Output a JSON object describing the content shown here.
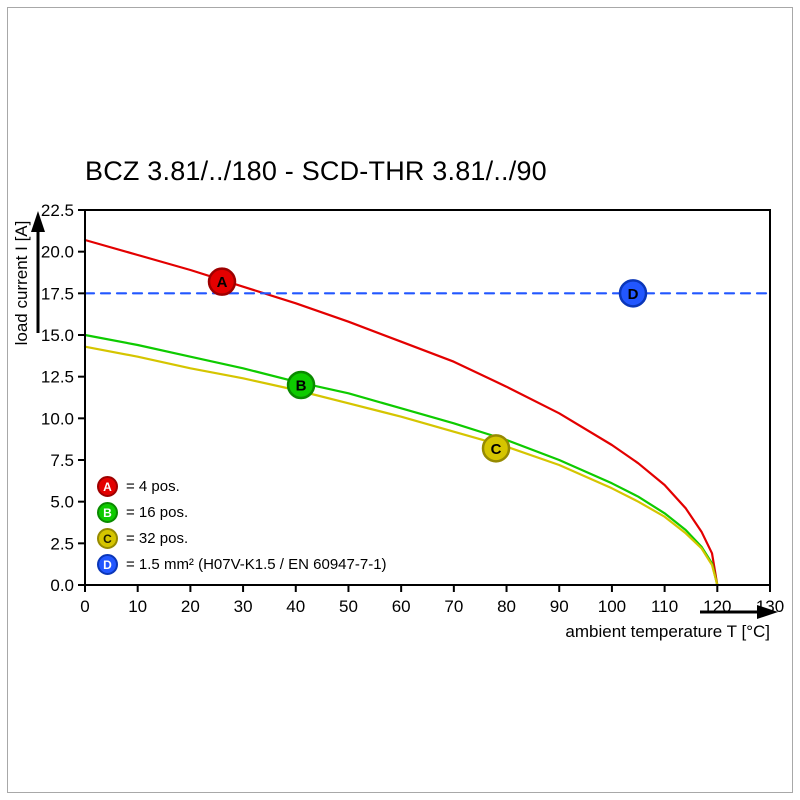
{
  "page": {
    "title": "BCZ 3.81/../180 - SCD-THR 3.81/../90"
  },
  "chart_data": {
    "type": "line",
    "title": "BCZ 3.81/../180 - SCD-THR 3.81/../90",
    "xlabel": "ambient temperature T [°C]",
    "ylabel": "load current I [A]",
    "xlim": [
      0,
      130
    ],
    "ylim": [
      0,
      22.5
    ],
    "xticks": [
      0,
      10,
      20,
      30,
      40,
      50,
      60,
      70,
      80,
      90,
      100,
      110,
      120,
      130
    ],
    "yticks": [
      "0.0",
      "2.5",
      "5.0",
      "7.5",
      "10.0",
      "12.5",
      "15.0",
      "17.5",
      "20.0",
      "22.5"
    ],
    "grid": false,
    "legend_position": "lower-left",
    "axis_color": "#000000",
    "series": [
      {
        "id": "A",
        "label": "= 4 pos.",
        "color": "#e30000",
        "ring_color": "#9e0000",
        "letter_color": "#ffffff",
        "style": "solid",
        "points": [
          [
            0,
            20.7
          ],
          [
            10,
            19.8
          ],
          [
            20,
            18.9
          ],
          [
            30,
            17.9
          ],
          [
            40,
            16.9
          ],
          [
            50,
            15.8
          ],
          [
            60,
            14.6
          ],
          [
            70,
            13.4
          ],
          [
            80,
            11.9
          ],
          [
            90,
            10.3
          ],
          [
            100,
            8.4
          ],
          [
            105,
            7.3
          ],
          [
            110,
            6.0
          ],
          [
            114,
            4.6
          ],
          [
            117,
            3.2
          ],
          [
            119,
            1.9
          ],
          [
            120,
            0
          ]
        ]
      },
      {
        "id": "B",
        "label": "= 16 pos.",
        "color": "#0ecb00",
        "ring_color": "#0a8a00",
        "letter_color": "#ffffff",
        "style": "solid",
        "points": [
          [
            0,
            15.0
          ],
          [
            10,
            14.4
          ],
          [
            20,
            13.7
          ],
          [
            30,
            13.0
          ],
          [
            40,
            12.2
          ],
          [
            50,
            11.5
          ],
          [
            60,
            10.6
          ],
          [
            70,
            9.7
          ],
          [
            80,
            8.7
          ],
          [
            90,
            7.5
          ],
          [
            100,
            6.1
          ],
          [
            105,
            5.3
          ],
          [
            110,
            4.3
          ],
          [
            114,
            3.3
          ],
          [
            117,
            2.3
          ],
          [
            119,
            1.3
          ],
          [
            120,
            0
          ]
        ]
      },
      {
        "id": "C",
        "label": "= 32 pos.",
        "color": "#d5c500",
        "ring_color": "#968a00",
        "letter_color": "#1c1c00",
        "style": "solid",
        "points": [
          [
            0,
            14.3
          ],
          [
            10,
            13.7
          ],
          [
            20,
            13.0
          ],
          [
            30,
            12.4
          ],
          [
            40,
            11.7
          ],
          [
            50,
            10.9
          ],
          [
            60,
            10.1
          ],
          [
            70,
            9.2
          ],
          [
            80,
            8.3
          ],
          [
            90,
            7.2
          ],
          [
            100,
            5.8
          ],
          [
            105,
            5.0
          ],
          [
            110,
            4.1
          ],
          [
            114,
            3.1
          ],
          [
            117,
            2.2
          ],
          [
            119,
            1.2
          ],
          [
            120,
            0
          ]
        ]
      },
      {
        "id": "D",
        "label": "= 1.5 mm² (H07V-K1.5 / EN 60947-7-1)",
        "color": "#2257ff",
        "ring_color": "#0a36b8",
        "letter_color": "#ffffff",
        "style": "dashed",
        "points": [
          [
            0,
            17.5
          ],
          [
            130,
            17.5
          ]
        ]
      }
    ],
    "markers": [
      {
        "series": "A",
        "letter": "A",
        "x": 26,
        "y": 18.2
      },
      {
        "series": "B",
        "letter": "B",
        "x": 41,
        "y": 12.0
      },
      {
        "series": "C",
        "letter": "C",
        "x": 78,
        "y": 8.2
      },
      {
        "series": "D",
        "letter": "D",
        "x": 104,
        "y": 17.5
      }
    ]
  }
}
